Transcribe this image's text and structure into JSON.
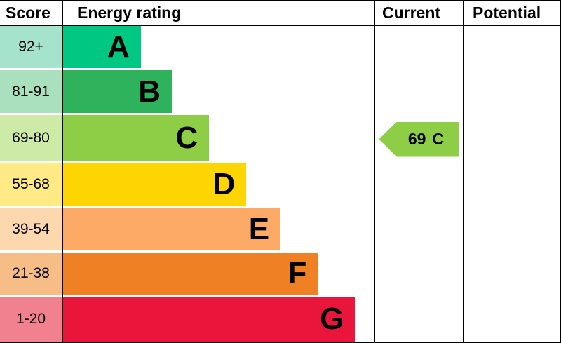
{
  "header": {
    "score": "Score",
    "energy_rating": "Energy rating",
    "current": "Current",
    "potential": "Potential"
  },
  "bands": [
    {
      "score_range": "92+",
      "letter": "A",
      "bar_color": "#00c781",
      "score_color": "#a6e3cc",
      "width_pct": 25
    },
    {
      "score_range": "81-91",
      "letter": "B",
      "bar_color": "#2eb35c",
      "score_color": "#abe0be",
      "width_pct": 35
    },
    {
      "score_range": "69-80",
      "letter": "C",
      "bar_color": "#8dce46",
      "score_color": "#cdeaa6",
      "width_pct": 47
    },
    {
      "score_range": "55-68",
      "letter": "D",
      "bar_color": "#ffd500",
      "score_color": "#ffea85",
      "width_pct": 59
    },
    {
      "score_range": "39-54",
      "letter": "E",
      "bar_color": "#fcaa65",
      "score_color": "#fdd7ae",
      "width_pct": 70
    },
    {
      "score_range": "21-38",
      "letter": "F",
      "bar_color": "#ef8023",
      "score_color": "#f6bd87",
      "width_pct": 82
    },
    {
      "score_range": "1-20",
      "letter": "G",
      "bar_color": "#e9153b",
      "score_color": "#f2818f",
      "width_pct": 94
    }
  ],
  "current_rating": {
    "value": "69",
    "letter": "C",
    "band_index": 2,
    "arrow_color": "#8dce46"
  },
  "chart_data": {
    "type": "bar",
    "title": "Energy rating",
    "categories": [
      "A",
      "B",
      "C",
      "D",
      "E",
      "F",
      "G"
    ],
    "score_ranges": [
      "92+",
      "81-91",
      "69-80",
      "55-68",
      "39-54",
      "21-38",
      "1-20"
    ],
    "relative_bar_widths_pct": [
      25,
      35,
      47,
      59,
      70,
      82,
      94
    ],
    "columns": [
      "Score",
      "Energy rating",
      "Current",
      "Potential"
    ],
    "current": {
      "score": 69,
      "band": "C"
    },
    "potential": null
  }
}
